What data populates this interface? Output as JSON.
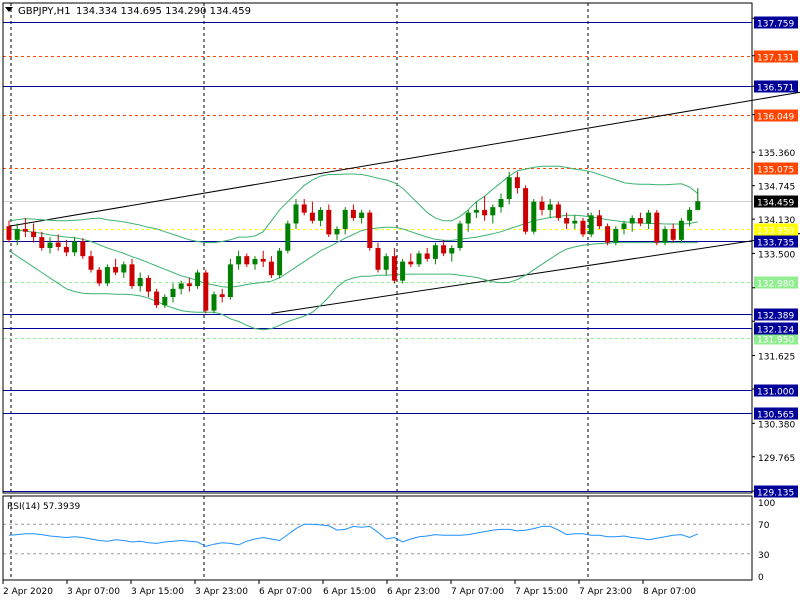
{
  "header": {
    "symbol": "GBPJPY,H1",
    "ohlc": "134.334 134.695 134.290 134.459"
  },
  "rsi_header": "RSI(14) 57.3939",
  "colors": {
    "bull": "#008000",
    "bear": "#cc0000",
    "bb": "#3cb371",
    "rsi": "#1e90ff",
    "blue_level": "#000099",
    "orange_level": "#ff4500",
    "current": "#d0d0d0",
    "yellow": "#ffff00",
    "lightgreen": "#90ee90",
    "channel": "#000000"
  },
  "chart_data": {
    "type": "candlestick",
    "price_range": [
      129.1,
      138.1
    ],
    "price_ticks": [
      "137.820",
      "137.131",
      "136.571",
      "136.049",
      "135.360",
      "134.745",
      "134.130",
      "133.500",
      "132.870",
      "132.255",
      "131.625",
      "131.010",
      "130.380",
      "129.765",
      "129.135"
    ],
    "time_labels": [
      "2 Apr 2020",
      "3 Apr 07:00",
      "3 Apr 15:00",
      "3 Apr 23:00",
      "6 Apr 07:00",
      "6 Apr 15:00",
      "6 Apr 23:00",
      "7 Apr 07:00",
      "7 Apr 15:00",
      "7 Apr 23:00",
      "8 Apr 07:00"
    ],
    "levels": [
      {
        "price": 137.759,
        "label": "137.759",
        "style": "blue"
      },
      {
        "price": 137.131,
        "label": "137.131",
        "style": "orange"
      },
      {
        "price": 136.571,
        "label": "136.571",
        "style": "blue"
      },
      {
        "price": 136.049,
        "label": "136.049",
        "style": "orange"
      },
      {
        "price": 135.075,
        "label": "135.075",
        "style": "orange"
      },
      {
        "price": 134.459,
        "label": "134.459",
        "style": "current"
      },
      {
        "price": 133.735,
        "label": "133.735",
        "style": "blue"
      },
      {
        "price": 132.389,
        "label": "132.389",
        "style": "blue"
      },
      {
        "price": 132.124,
        "label": "132.124",
        "style": "blue"
      },
      {
        "price": 131.0,
        "label": "131.000",
        "style": "blue"
      },
      {
        "price": 130.565,
        "label": "130.565",
        "style": "blue"
      },
      {
        "price": 129.135,
        "label": "129.135",
        "style": "blue"
      }
    ],
    "faint_levels": [
      {
        "price": 133.95,
        "label": "133.950",
        "style": "yellow"
      },
      {
        "price": 132.98,
        "label": "132.980",
        "style": "lightgreen"
      },
      {
        "price": 131.95,
        "label": "131.950",
        "style": "lightgreen"
      }
    ],
    "channel_lines": [
      {
        "p1": [
          0,
          134.0
        ],
        "p2": [
          98,
          136.5
        ]
      },
      {
        "p1": [
          32,
          132.4
        ],
        "p2": [
          98,
          133.9
        ]
      }
    ],
    "candles": [
      [
        134.0,
        134.1,
        133.7,
        133.75
      ],
      [
        133.75,
        134.05,
        133.65,
        133.95
      ],
      [
        133.95,
        134.15,
        133.8,
        133.9
      ],
      [
        133.9,
        134.05,
        133.7,
        133.8
      ],
      [
        133.8,
        133.9,
        133.55,
        133.6
      ],
      [
        133.6,
        133.8,
        133.5,
        133.7
      ],
      [
        133.7,
        133.85,
        133.55,
        133.62
      ],
      [
        133.62,
        133.75,
        133.45,
        133.52
      ],
      [
        133.52,
        133.8,
        133.45,
        133.72
      ],
      [
        133.72,
        133.78,
        133.4,
        133.45
      ],
      [
        133.45,
        133.55,
        133.15,
        133.2
      ],
      [
        133.2,
        133.25,
        132.9,
        132.95
      ],
      [
        132.95,
        133.3,
        132.9,
        133.25
      ],
      [
        133.25,
        133.4,
        133.1,
        133.15
      ],
      [
        133.15,
        133.35,
        133.05,
        133.3
      ],
      [
        133.3,
        133.4,
        132.85,
        132.9
      ],
      [
        132.9,
        133.15,
        132.8,
        133.05
      ],
      [
        133.05,
        133.1,
        132.7,
        132.8
      ],
      [
        132.8,
        132.85,
        132.5,
        132.55
      ],
      [
        132.55,
        132.75,
        132.5,
        132.7
      ],
      [
        132.7,
        132.95,
        132.6,
        132.85
      ],
      [
        132.85,
        133.0,
        132.75,
        132.95
      ],
      [
        132.95,
        133.05,
        132.8,
        132.9
      ],
      [
        132.9,
        133.2,
        132.85,
        133.15
      ],
      [
        133.15,
        133.2,
        132.4,
        132.45
      ],
      [
        132.45,
        132.8,
        132.4,
        132.75
      ],
      [
        132.75,
        132.85,
        132.6,
        132.7
      ],
      [
        132.7,
        133.4,
        132.65,
        133.3
      ],
      [
        133.3,
        133.55,
        133.2,
        133.45
      ],
      [
        133.45,
        133.5,
        133.25,
        133.3
      ],
      [
        133.3,
        133.45,
        133.2,
        133.4
      ],
      [
        133.4,
        133.55,
        133.25,
        133.35
      ],
      [
        133.35,
        133.45,
        133.05,
        133.1
      ],
      [
        133.1,
        133.6,
        133.05,
        133.55
      ],
      [
        133.55,
        134.1,
        133.5,
        134.05
      ],
      [
        134.05,
        134.5,
        133.95,
        134.4
      ],
      [
        134.4,
        134.5,
        134.2,
        134.25
      ],
      [
        134.25,
        134.45,
        134.05,
        134.1
      ],
      [
        134.1,
        134.35,
        134.0,
        134.3
      ],
      [
        134.3,
        134.4,
        133.8,
        133.85
      ],
      [
        133.85,
        134.0,
        133.75,
        133.95
      ],
      [
        133.95,
        134.35,
        133.85,
        134.3
      ],
      [
        134.3,
        134.4,
        134.1,
        134.15
      ],
      [
        134.15,
        134.3,
        134.05,
        134.25
      ],
      [
        134.25,
        134.3,
        133.55,
        133.6
      ],
      [
        133.6,
        133.7,
        133.15,
        133.2
      ],
      [
        133.2,
        133.5,
        133.1,
        133.45
      ],
      [
        133.45,
        133.6,
        132.95,
        133.0
      ],
      [
        133.0,
        133.4,
        132.95,
        133.35
      ],
      [
        133.35,
        133.5,
        133.25,
        133.3
      ],
      [
        133.3,
        133.55,
        133.25,
        133.5
      ],
      [
        133.5,
        133.6,
        133.35,
        133.4
      ],
      [
        133.4,
        133.7,
        133.3,
        133.65
      ],
      [
        133.65,
        133.75,
        133.45,
        133.5
      ],
      [
        133.5,
        133.65,
        133.35,
        133.6
      ],
      [
        133.6,
        134.1,
        133.55,
        134.05
      ],
      [
        134.05,
        134.3,
        133.9,
        134.25
      ],
      [
        134.25,
        134.45,
        134.15,
        134.3
      ],
      [
        134.3,
        134.55,
        134.1,
        134.2
      ],
      [
        134.2,
        134.4,
        134.05,
        134.35
      ],
      [
        134.35,
        134.6,
        134.25,
        134.5
      ],
      [
        134.5,
        135.0,
        134.4,
        134.9
      ],
      [
        134.9,
        135.0,
        134.6,
        134.7
      ],
      [
        134.7,
        134.75,
        133.85,
        133.9
      ],
      [
        133.9,
        134.5,
        133.85,
        134.45
      ],
      [
        134.45,
        134.55,
        134.2,
        134.3
      ],
      [
        134.3,
        134.5,
        134.15,
        134.4
      ],
      [
        134.4,
        134.45,
        134.1,
        134.15
      ],
      [
        134.15,
        134.25,
        133.95,
        134.05
      ],
      [
        134.05,
        134.2,
        133.95,
        134.1
      ],
      [
        134.1,
        134.15,
        133.8,
        133.85
      ],
      [
        133.85,
        134.25,
        133.8,
        134.2
      ],
      [
        134.2,
        134.3,
        133.95,
        134.0
      ],
      [
        134.0,
        134.05,
        133.65,
        133.7
      ],
      [
        133.7,
        134.0,
        133.65,
        133.95
      ],
      [
        133.95,
        134.1,
        133.85,
        134.05
      ],
      [
        134.05,
        134.2,
        133.9,
        134.15
      ],
      [
        134.15,
        134.25,
        134.0,
        134.05
      ],
      [
        134.05,
        134.3,
        133.95,
        134.25
      ],
      [
        134.25,
        134.3,
        133.65,
        133.7
      ],
      [
        133.7,
        134.0,
        133.65,
        133.95
      ],
      [
        133.95,
        134.05,
        133.7,
        133.75
      ],
      [
        133.75,
        134.15,
        133.7,
        134.1
      ],
      [
        134.1,
        134.35,
        134.0,
        134.3
      ],
      [
        134.3,
        134.7,
        134.29,
        134.46
      ]
    ],
    "bb_upper": [
      134.1,
      134.12,
      134.14,
      134.13,
      134.12,
      134.11,
      134.1,
      134.1,
      134.11,
      134.12,
      134.14,
      134.15,
      134.12,
      134.1,
      134.08,
      134.05,
      134.02,
      133.98,
      133.95,
      133.9,
      133.85,
      133.8,
      133.75,
      133.72,
      133.7,
      133.7,
      133.72,
      133.75,
      133.8,
      133.8,
      133.82,
      133.9,
      134.1,
      134.3,
      134.45,
      134.6,
      134.75,
      134.85,
      134.92,
      134.95,
      134.95,
      134.96,
      134.96,
      134.95,
      134.92,
      134.88,
      134.85,
      134.8,
      134.7,
      134.55,
      134.4,
      134.25,
      134.15,
      134.1,
      134.1,
      134.18,
      134.3,
      134.45,
      134.55,
      134.68,
      134.8,
      134.92,
      135.02,
      135.05,
      135.08,
      135.1,
      135.1,
      135.1,
      135.08,
      135.05,
      135.03,
      135.0,
      134.95,
      134.9,
      134.85,
      134.8,
      134.78,
      134.77,
      134.77,
      134.76,
      134.76,
      134.77,
      134.78,
      134.72,
      134.6
    ],
    "bb_mid": [
      133.95,
      133.93,
      133.91,
      133.89,
      133.87,
      133.84,
      133.82,
      133.8,
      133.79,
      133.76,
      133.72,
      133.66,
      133.6,
      133.55,
      133.5,
      133.44,
      133.39,
      133.33,
      133.27,
      133.21,
      133.15,
      133.09,
      133.05,
      133.0,
      132.95,
      132.92,
      132.89,
      132.88,
      132.9,
      132.93,
      132.95,
      132.97,
      132.99,
      133.05,
      133.15,
      133.25,
      133.35,
      133.45,
      133.55,
      133.62,
      133.7,
      133.78,
      133.85,
      133.92,
      133.95,
      133.97,
      133.98,
      133.98,
      133.95,
      133.9,
      133.85,
      133.8,
      133.76,
      133.74,
      133.74,
      133.76,
      133.78,
      133.8,
      133.83,
      133.86,
      133.9,
      133.95,
      134.0,
      134.05,
      134.1,
      134.13,
      134.16,
      134.18,
      134.2,
      134.2,
      134.19,
      134.17,
      134.15,
      134.12,
      134.1,
      134.08,
      134.07,
      134.06,
      134.05,
      134.05,
      134.04,
      134.04,
      134.04,
      134.05,
      134.08
    ],
    "bb_lower": [
      133.55,
      133.45,
      133.35,
      133.25,
      133.15,
      133.05,
      132.95,
      132.85,
      132.8,
      132.77,
      132.76,
      132.76,
      132.76,
      132.75,
      132.75,
      132.74,
      132.72,
      132.68,
      132.62,
      132.55,
      132.5,
      132.45,
      132.43,
      132.42,
      132.42,
      132.42,
      132.38,
      132.3,
      132.25,
      132.18,
      132.12,
      132.1,
      132.12,
      132.18,
      132.25,
      132.3,
      132.35,
      132.42,
      132.55,
      132.7,
      132.88,
      133.0,
      133.05,
      133.08,
      133.08,
      133.1,
      133.1,
      133.11,
      133.12,
      133.12,
      133.12,
      133.12,
      133.12,
      133.12,
      133.12,
      133.1,
      133.08,
      133.06,
      133.02,
      132.98,
      132.96,
      132.97,
      133.02,
      133.1,
      133.2,
      133.3,
      133.4,
      133.5,
      133.58,
      133.62,
      133.65,
      133.67,
      133.68,
      133.69,
      133.7,
      133.7,
      133.7,
      133.7,
      133.7,
      133.7,
      133.7,
      133.7,
      133.7,
      133.7,
      133.7
    ],
    "rsi_levels": [
      70,
      30
    ],
    "rsi_ticks": [
      "100",
      "70",
      "30",
      "0"
    ],
    "rsi_values": [
      55,
      56,
      57,
      57,
      56,
      54,
      53,
      52,
      53,
      52,
      50,
      48,
      47,
      49,
      48,
      46,
      47,
      45,
      44,
      46,
      47,
      48,
      47,
      46,
      40,
      43,
      45,
      44,
      42,
      47,
      50,
      52,
      50,
      48,
      56,
      64,
      70,
      70,
      69,
      68,
      62,
      63,
      67,
      66,
      67,
      59,
      50,
      52,
      46,
      50,
      53,
      54,
      56,
      55,
      55,
      55,
      56,
      58,
      60,
      62,
      63,
      63,
      61,
      62,
      64,
      67,
      67,
      62,
      56,
      57,
      57,
      55,
      55,
      53,
      53,
      54,
      52,
      51,
      49,
      51,
      53,
      55,
      56,
      52,
      57
    ]
  }
}
